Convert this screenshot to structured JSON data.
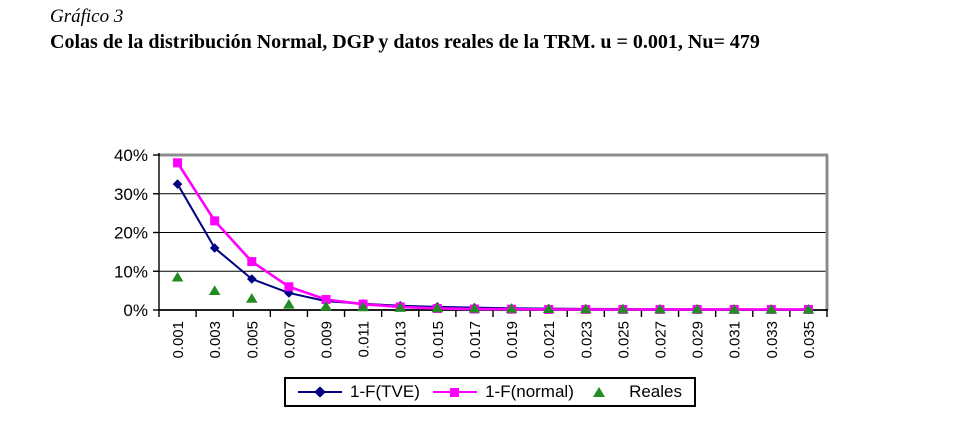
{
  "doc": {
    "figure_label": "Gráfico 3",
    "figure_title": "Colas de la distribución Normal, DGP y datos reales de la TRM. u = 0.001, Nu= 479"
  },
  "chart_data": {
    "type": "line",
    "title": "Colas de la distribución Normal, DGP y datos reales de la TRM. u = 0.001, Nu= 479",
    "xlabel": "",
    "ylabel": "",
    "unit": "%",
    "categories": [
      "0.001",
      "0.003",
      "0.005",
      "0.007",
      "0.009",
      "0.011",
      "0.013",
      "0.015",
      "0.017",
      "0.019",
      "0.021",
      "0.023",
      "0.025",
      "0.027",
      "0.029",
      "0.031",
      "0.033",
      "0.035"
    ],
    "series": [
      {
        "name": "1-F(TVE)",
        "color": "#000080",
        "marker": "diamond",
        "line": true,
        "values": [
          32.5,
          16,
          8,
          4.4,
          2.3,
          1.6,
          1.1,
          0.8,
          0.6,
          0.45,
          0.35,
          0.3,
          0.25,
          0.2,
          0.18,
          0.15,
          0.12,
          0.1
        ]
      },
      {
        "name": "1-F(normal)",
        "color": "#FF00FF",
        "marker": "square",
        "line": true,
        "values": [
          38,
          23,
          12.5,
          6,
          2.7,
          1.5,
          0.8,
          0.4,
          0.25,
          0.2,
          0.15,
          0.15,
          0.15,
          0.15,
          0.15,
          0.15,
          0.15,
          0.15
        ]
      },
      {
        "name": "Reales",
        "color": "#228B22",
        "marker": "triangle",
        "line": false,
        "values": [
          8.5,
          5,
          3,
          1.5,
          1.0,
          0.8,
          0.65,
          0.55,
          0.45,
          0.4,
          0.35,
          0.3,
          0.3,
          0.25,
          0.25,
          0.2,
          0.2,
          0.2
        ]
      }
    ],
    "ylim": [
      0,
      40
    ],
    "yticks": [
      0,
      10,
      20,
      30,
      40
    ],
    "ytick_labels": [
      "0%",
      "10%",
      "20%",
      "30%",
      "40%"
    ],
    "grid": "horizontal",
    "legend_position": "bottom-center",
    "axis_colors": {
      "grid": "#000000",
      "border": "#8C8C8C"
    }
  }
}
